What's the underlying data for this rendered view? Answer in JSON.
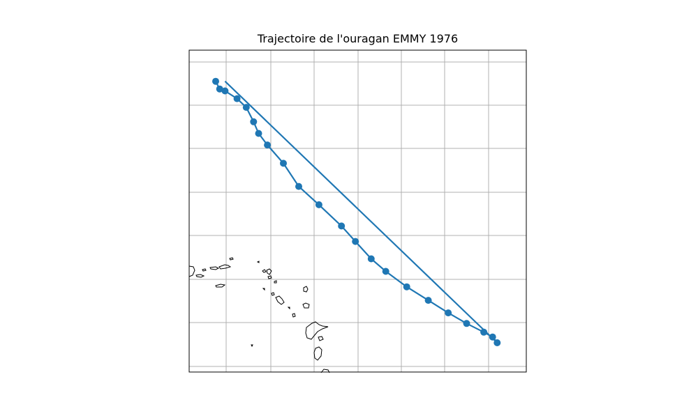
{
  "title": "Trajectoire de l'ouragan EMMY 1976",
  "colors": {
    "track": "#1f77b4",
    "grid": "#b0b0b0",
    "coast": "#000000",
    "frame": "#000000"
  },
  "chart_data": {
    "type": "line",
    "title": "Trajectoire de l'ouragan EMMY 1976",
    "xlabel": "",
    "ylabel": "",
    "grid": true,
    "ticks_labeled": false,
    "series": [
      {
        "values_note": "",
        "x": [
          0.0,
          0.2,
          0.47,
          1.07,
          1.53,
          1.9,
          2.15,
          2.59,
          3.39,
          4.16,
          5.17,
          6.3,
          7.0,
          7.79,
          8.52,
          9.57,
          10.65,
          11.65,
          12.57,
          13.43,
          13.87,
          14.1,
          0.47
        ],
        "y": [
          15.0,
          14.6,
          14.5,
          14.1,
          13.65,
          12.9,
          12.3,
          11.7,
          10.75,
          9.55,
          8.6,
          7.5,
          6.7,
          5.8,
          5.15,
          4.35,
          3.65,
          3.0,
          2.45,
          2.0,
          1.75,
          1.45,
          15.0
        ]
      }
    ]
  }
}
